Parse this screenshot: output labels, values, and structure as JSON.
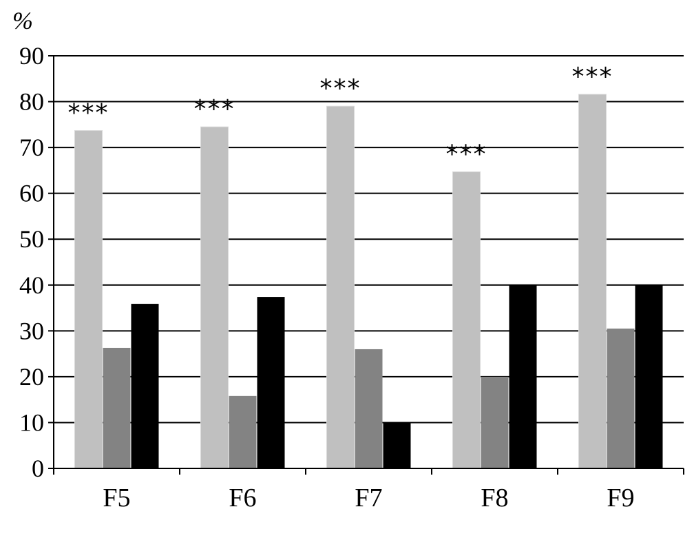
{
  "chart_data": {
    "type": "bar",
    "unit_label": "%",
    "categories": [
      "F5",
      "F6",
      "F7",
      "F8",
      "F9"
    ],
    "series": [
      {
        "color": "#c0c0c0",
        "values": [
          73.7,
          74.5,
          79,
          64.7,
          81.6
        ]
      },
      {
        "color": "#838383",
        "values": [
          26.3,
          15.8,
          26,
          20,
          30.5
        ]
      },
      {
        "color": "#000000",
        "values": [
          35.9,
          37.4,
          10,
          40,
          40
        ]
      }
    ],
    "significance_labels": [
      "***",
      "***",
      "***",
      "***",
      "***"
    ],
    "ylim": [
      0,
      90
    ],
    "yticks": [
      "0",
      "10",
      "20",
      "30",
      "40",
      "50",
      "60",
      "70",
      "80",
      "90"
    ],
    "grid": true,
    "legend": "none"
  }
}
